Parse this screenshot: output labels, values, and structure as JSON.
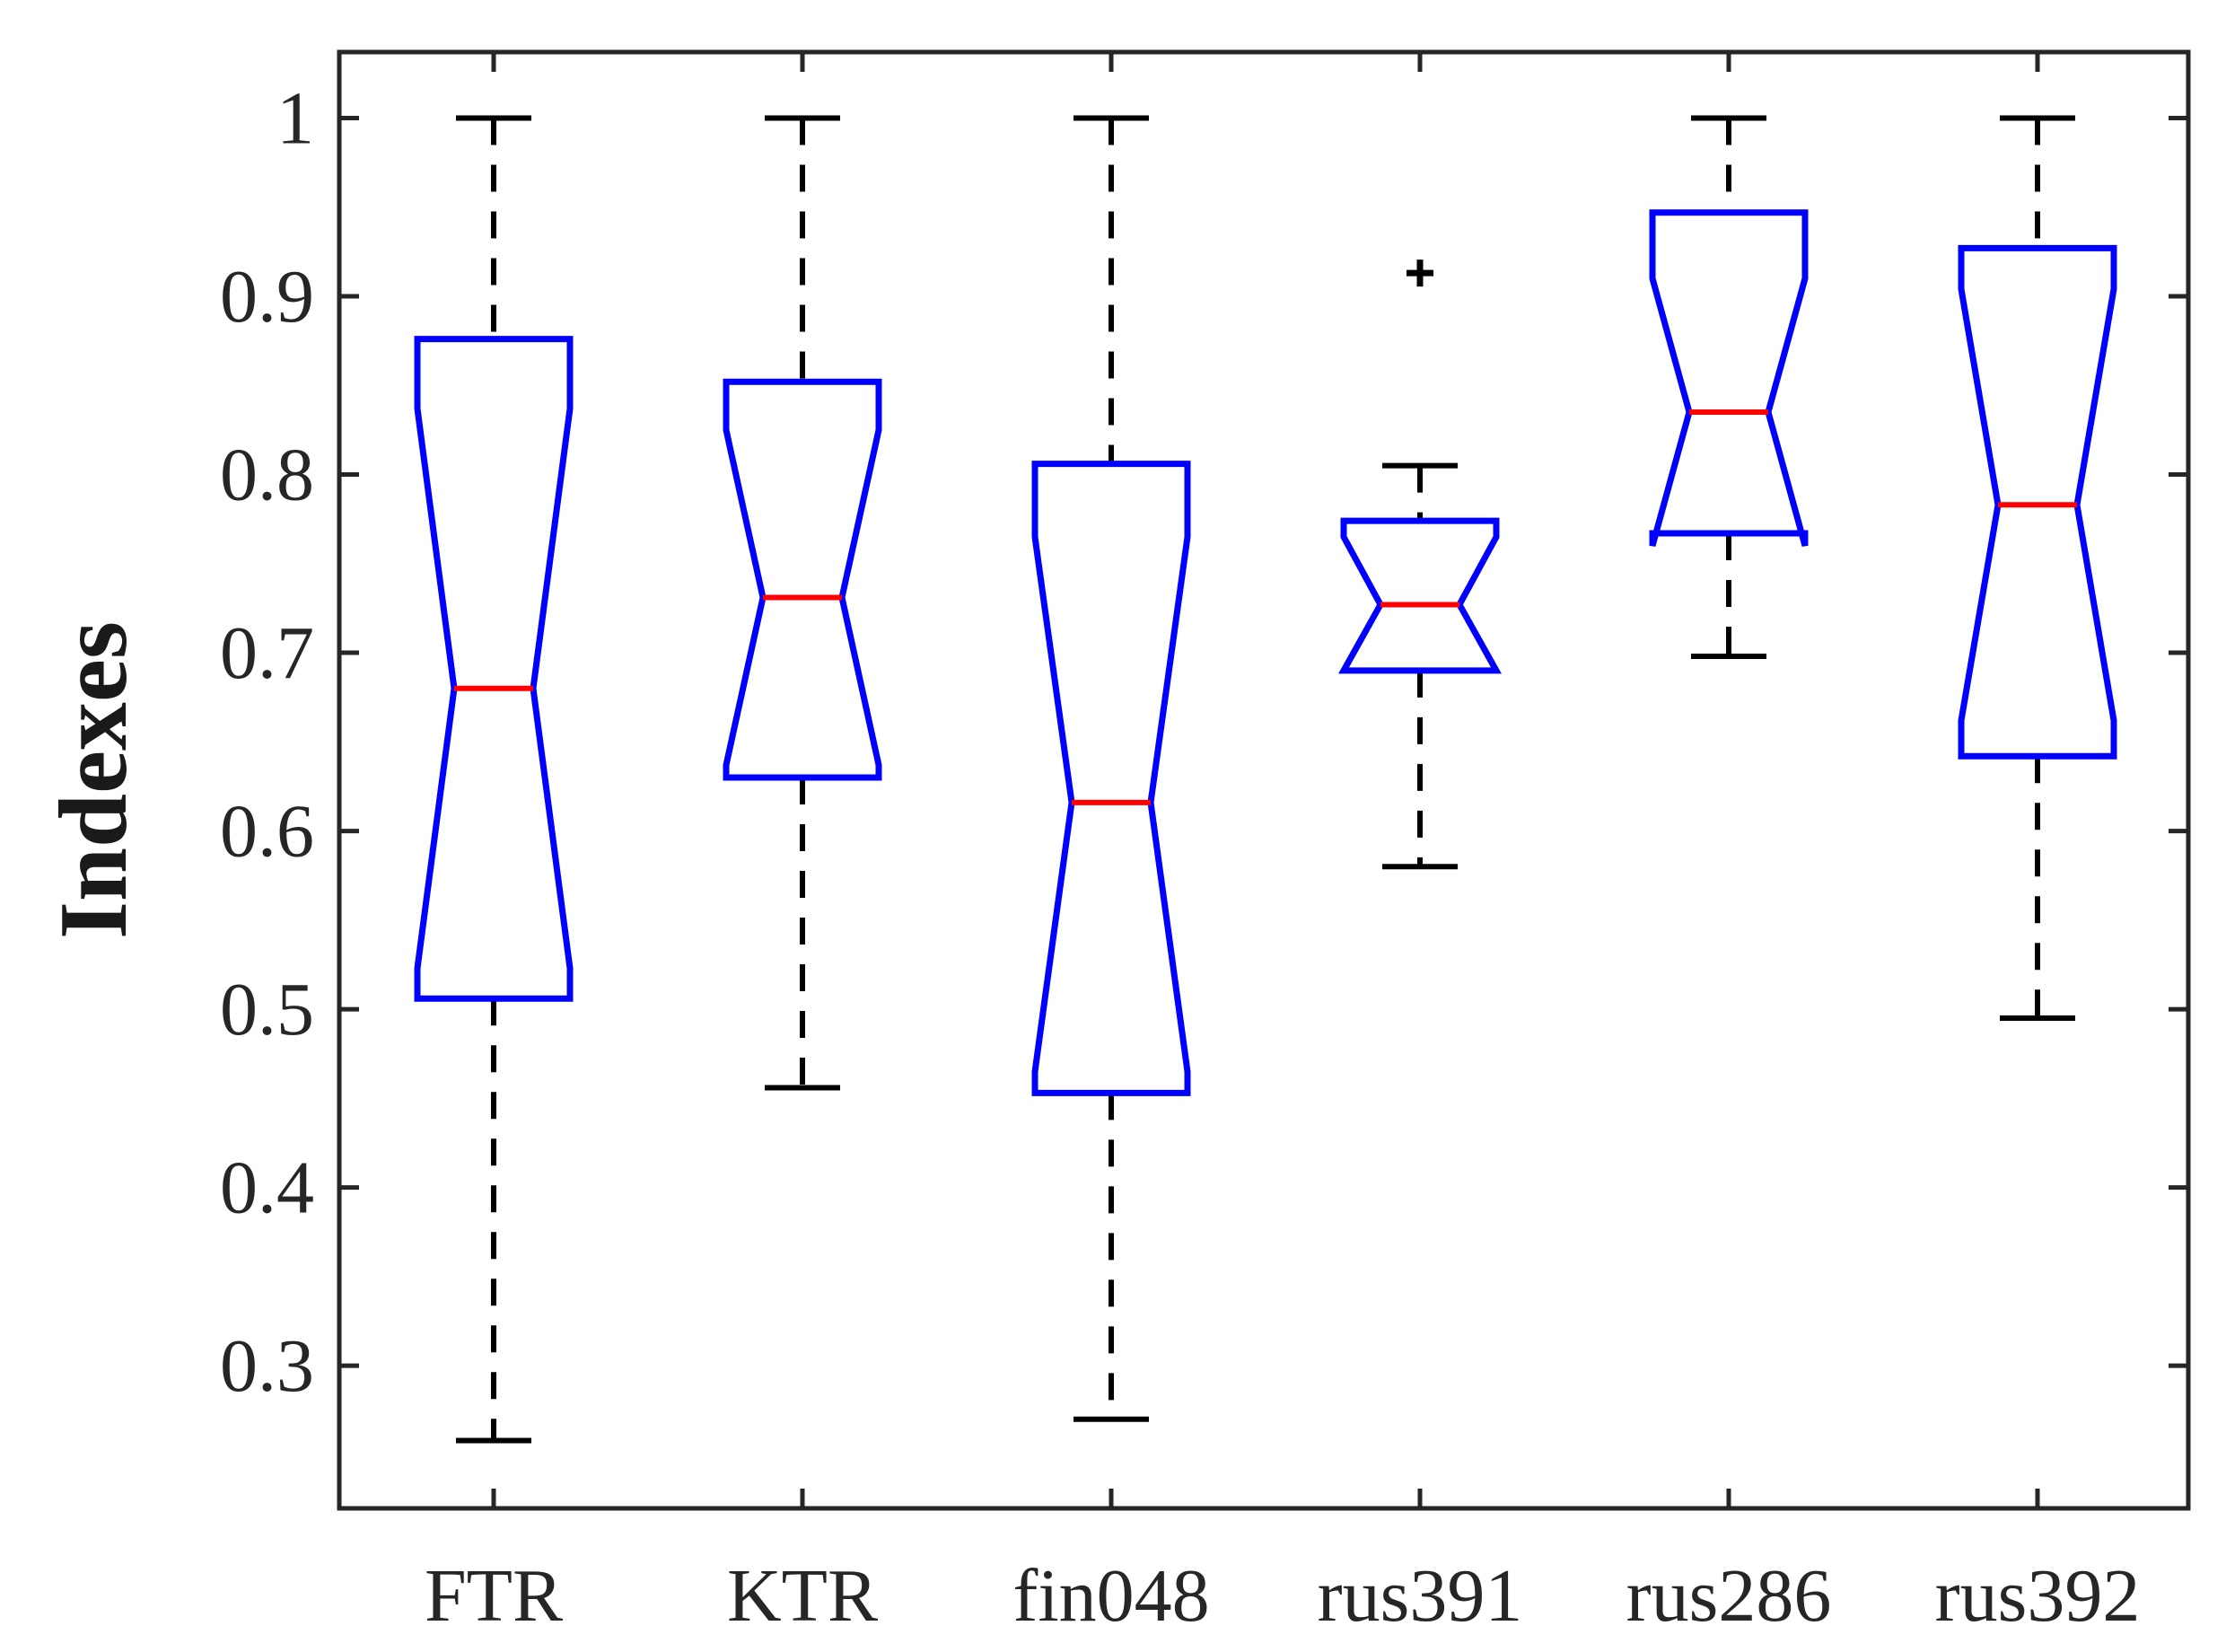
{
  "chart_data": {
    "type": "boxplot",
    "notched": true,
    "title": "",
    "xlabel": "",
    "ylabel": "Indexes",
    "ylim": [
      0.22,
      1.037
    ],
    "yticks": [
      0.3,
      0.4,
      0.5,
      0.6,
      0.7,
      0.8,
      0.9,
      1
    ],
    "ytick_labels": [
      "0.3",
      "0.4",
      "0.5",
      "0.6",
      "0.7",
      "0.8",
      "0.9",
      "1"
    ],
    "categories": [
      "FTR",
      "KTR",
      "fin048",
      "rus391",
      "rus286",
      "rus392"
    ],
    "boxes": [
      {
        "name": "FTR",
        "whisker_low": 0.258,
        "q1": 0.506,
        "median": 0.68,
        "q3": 0.876,
        "whisker_high": 1.0,
        "notch_low": 0.523,
        "notch_high": 0.837,
        "outliers": []
      },
      {
        "name": "KTR",
        "whisker_low": 0.456,
        "q1": 0.63,
        "median": 0.731,
        "q3": 0.852,
        "whisker_high": 1.0,
        "notch_low": 0.637,
        "notch_high": 0.825,
        "outliers": []
      },
      {
        "name": "fin048",
        "whisker_low": 0.27,
        "q1": 0.453,
        "median": 0.616,
        "q3": 0.806,
        "whisker_high": 1.0,
        "notch_low": 0.465,
        "notch_high": 0.765,
        "outliers": []
      },
      {
        "name": "rus391",
        "whisker_low": 0.58,
        "q1": 0.69,
        "median": 0.727,
        "q3": 0.774,
        "whisker_high": 0.805,
        "notch_low": 0.69,
        "notch_high": 0.765,
        "outliers": [
          0.913
        ]
      },
      {
        "name": "rus286",
        "whisker_low": 0.698,
        "q1": 0.767,
        "median": 0.835,
        "q3": 0.947,
        "whisker_high": 1.0,
        "notch_low": 0.76,
        "notch_high": 0.91,
        "outliers": []
      },
      {
        "name": "rus392",
        "whisker_low": 0.495,
        "q1": 0.642,
        "median": 0.783,
        "q3": 0.927,
        "whisker_high": 1.0,
        "notch_low": 0.662,
        "notch_high": 0.904,
        "outliers": []
      }
    ],
    "colors": {
      "box": "#0000ff",
      "median": "#ff0000",
      "whisker": "#000000",
      "axis": "#262626"
    },
    "grid": false,
    "legend": "none"
  }
}
